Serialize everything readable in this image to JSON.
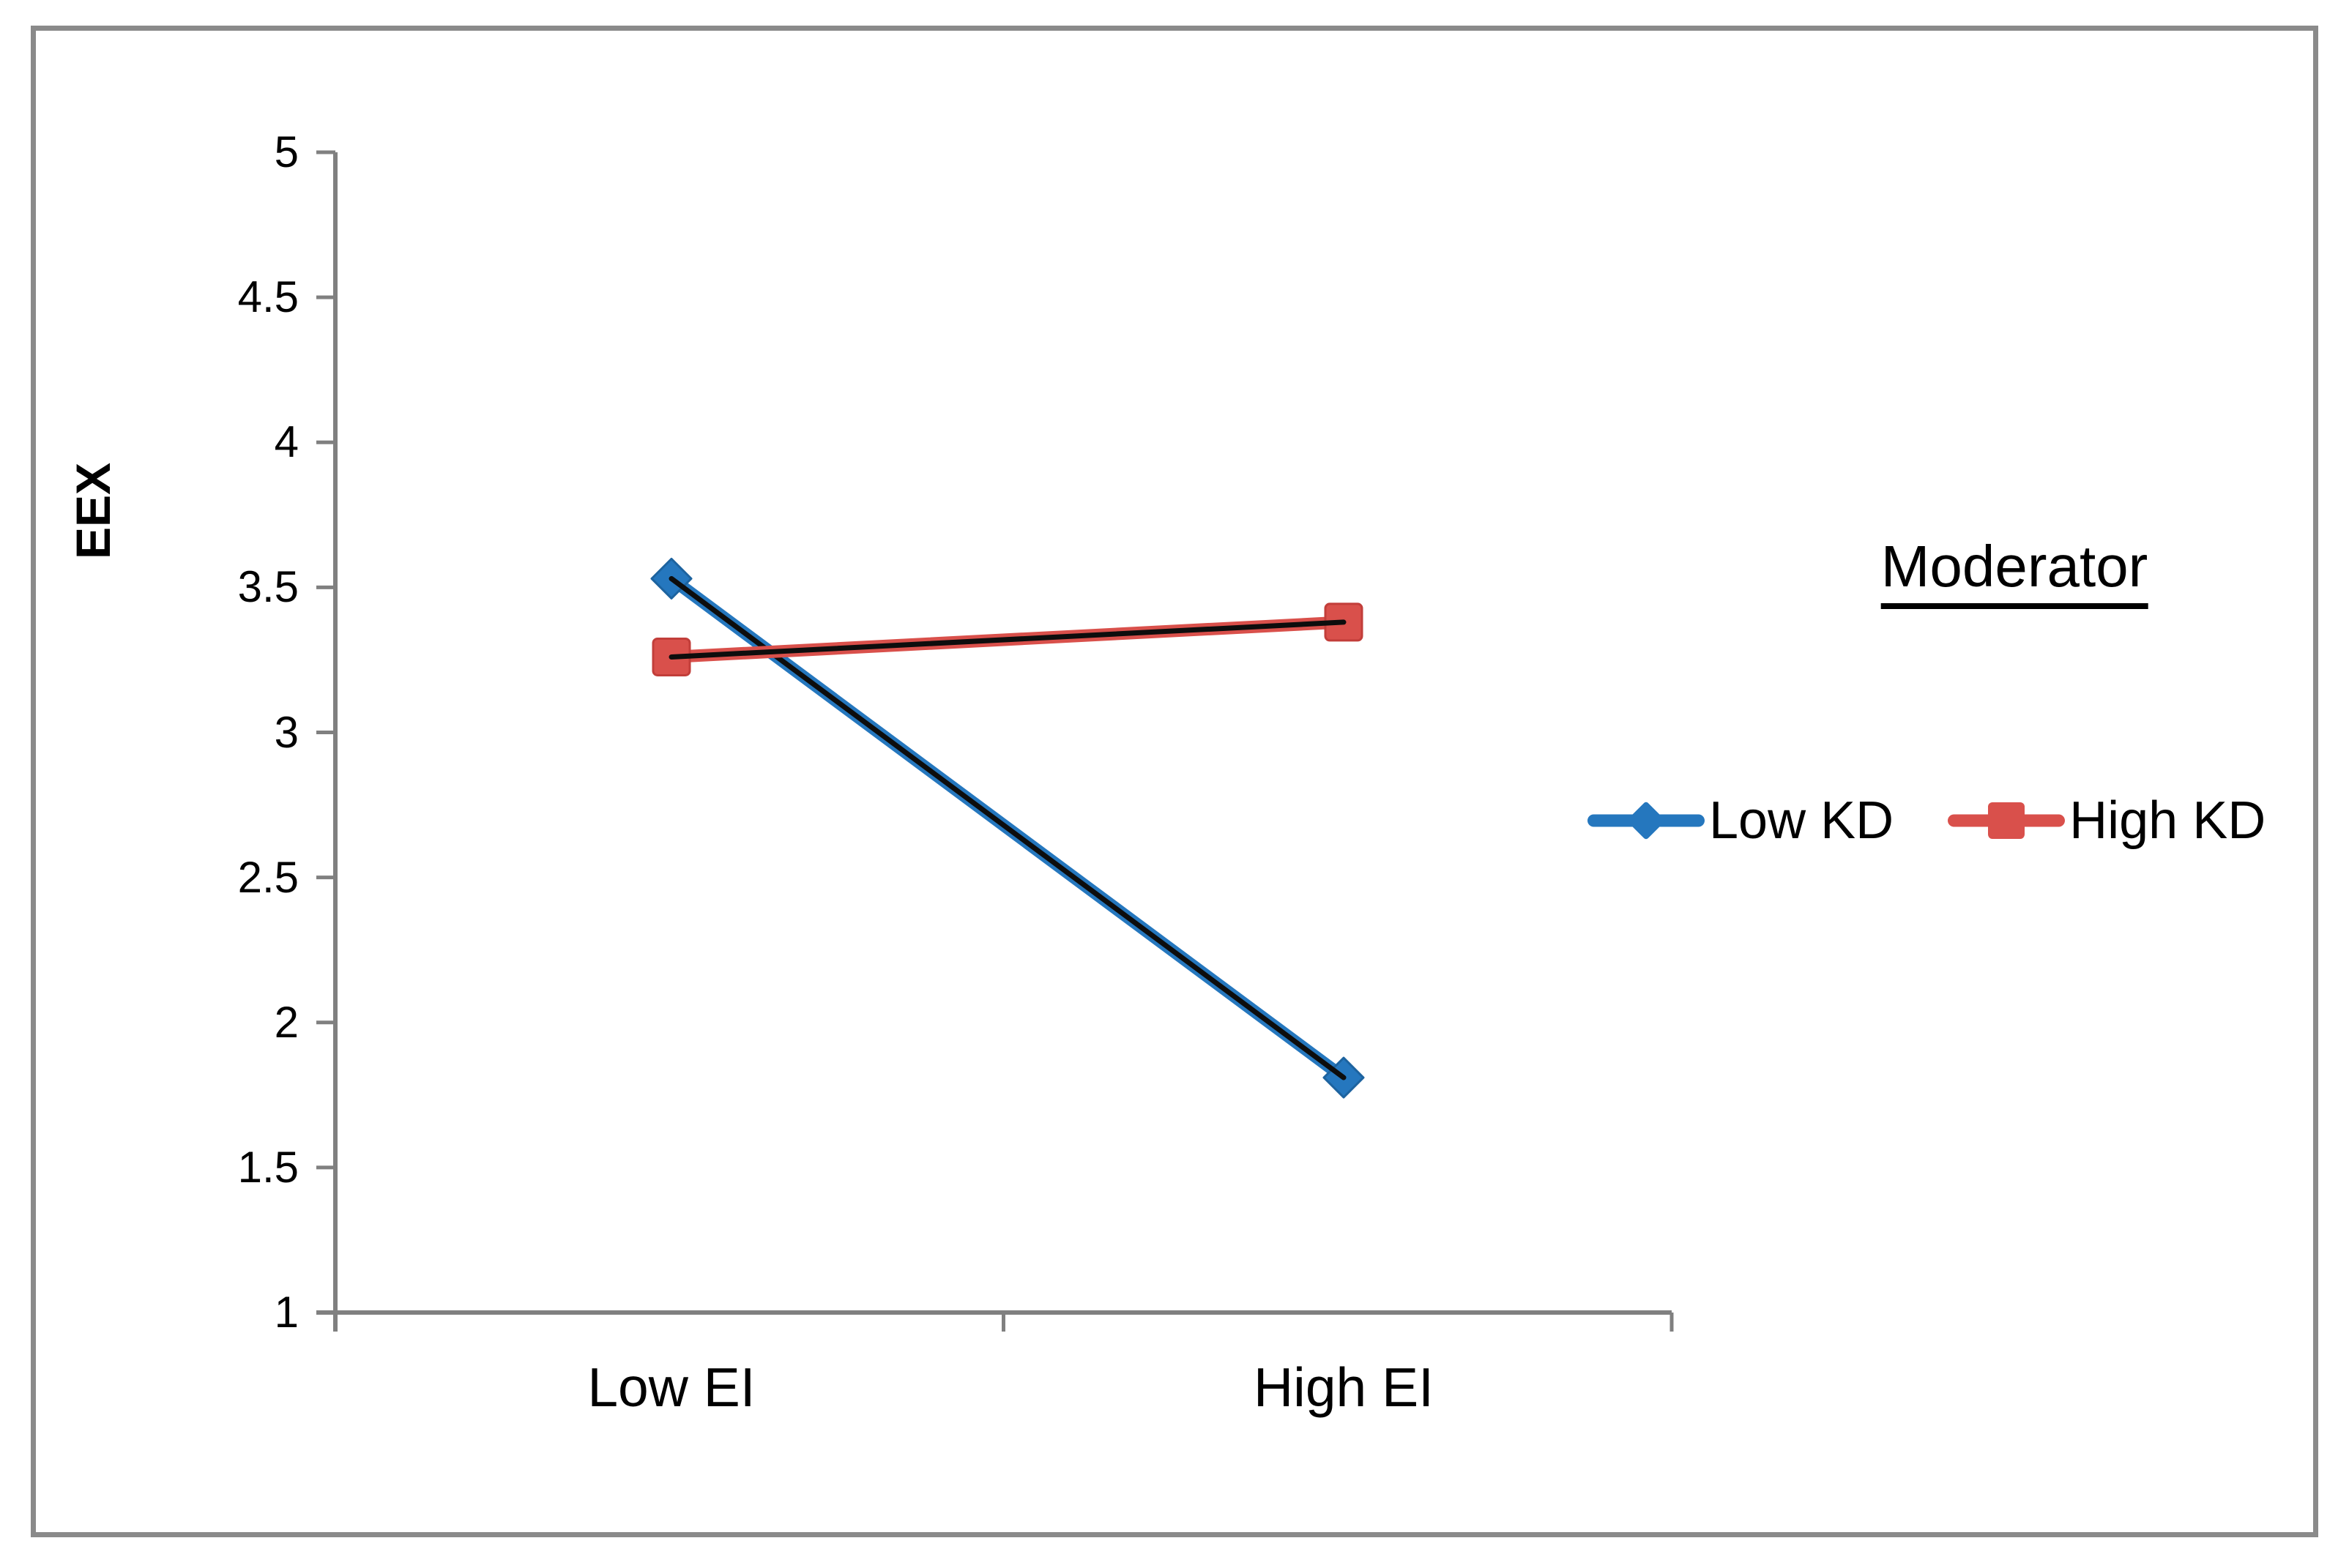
{
  "chart_data": {
    "type": "line",
    "title": "",
    "xlabel": "",
    "ylabel": "EEX",
    "categories": [
      "Low EI",
      "High EI"
    ],
    "series": [
      {
        "name": "Low KD",
        "marker": "diamond",
        "color": "#2577BE",
        "marker_stroke": "#1d639f",
        "overlay_color": "#0d0d0d",
        "values": [
          3.53,
          1.81
        ]
      },
      {
        "name": "High KD",
        "marker": "square",
        "color": "#D9504B",
        "marker_stroke": "#c23e3a",
        "overlay_color": "#0d0d0d",
        "values": [
          3.26,
          3.38
        ]
      }
    ],
    "ylim": [
      1,
      5
    ],
    "ytick_step": 0.5,
    "y_ticks": [
      "5",
      "4.5",
      "4",
      "3.5",
      "3",
      "2.5",
      "2",
      "1.5",
      "1"
    ],
    "y_tick_values": [
      5,
      4.5,
      4,
      3.5,
      3,
      2.5,
      2,
      1.5,
      1
    ],
    "legend_title": "Moderator",
    "legend_position": "right-middle",
    "grid": false,
    "axis_color": "#808080"
  }
}
